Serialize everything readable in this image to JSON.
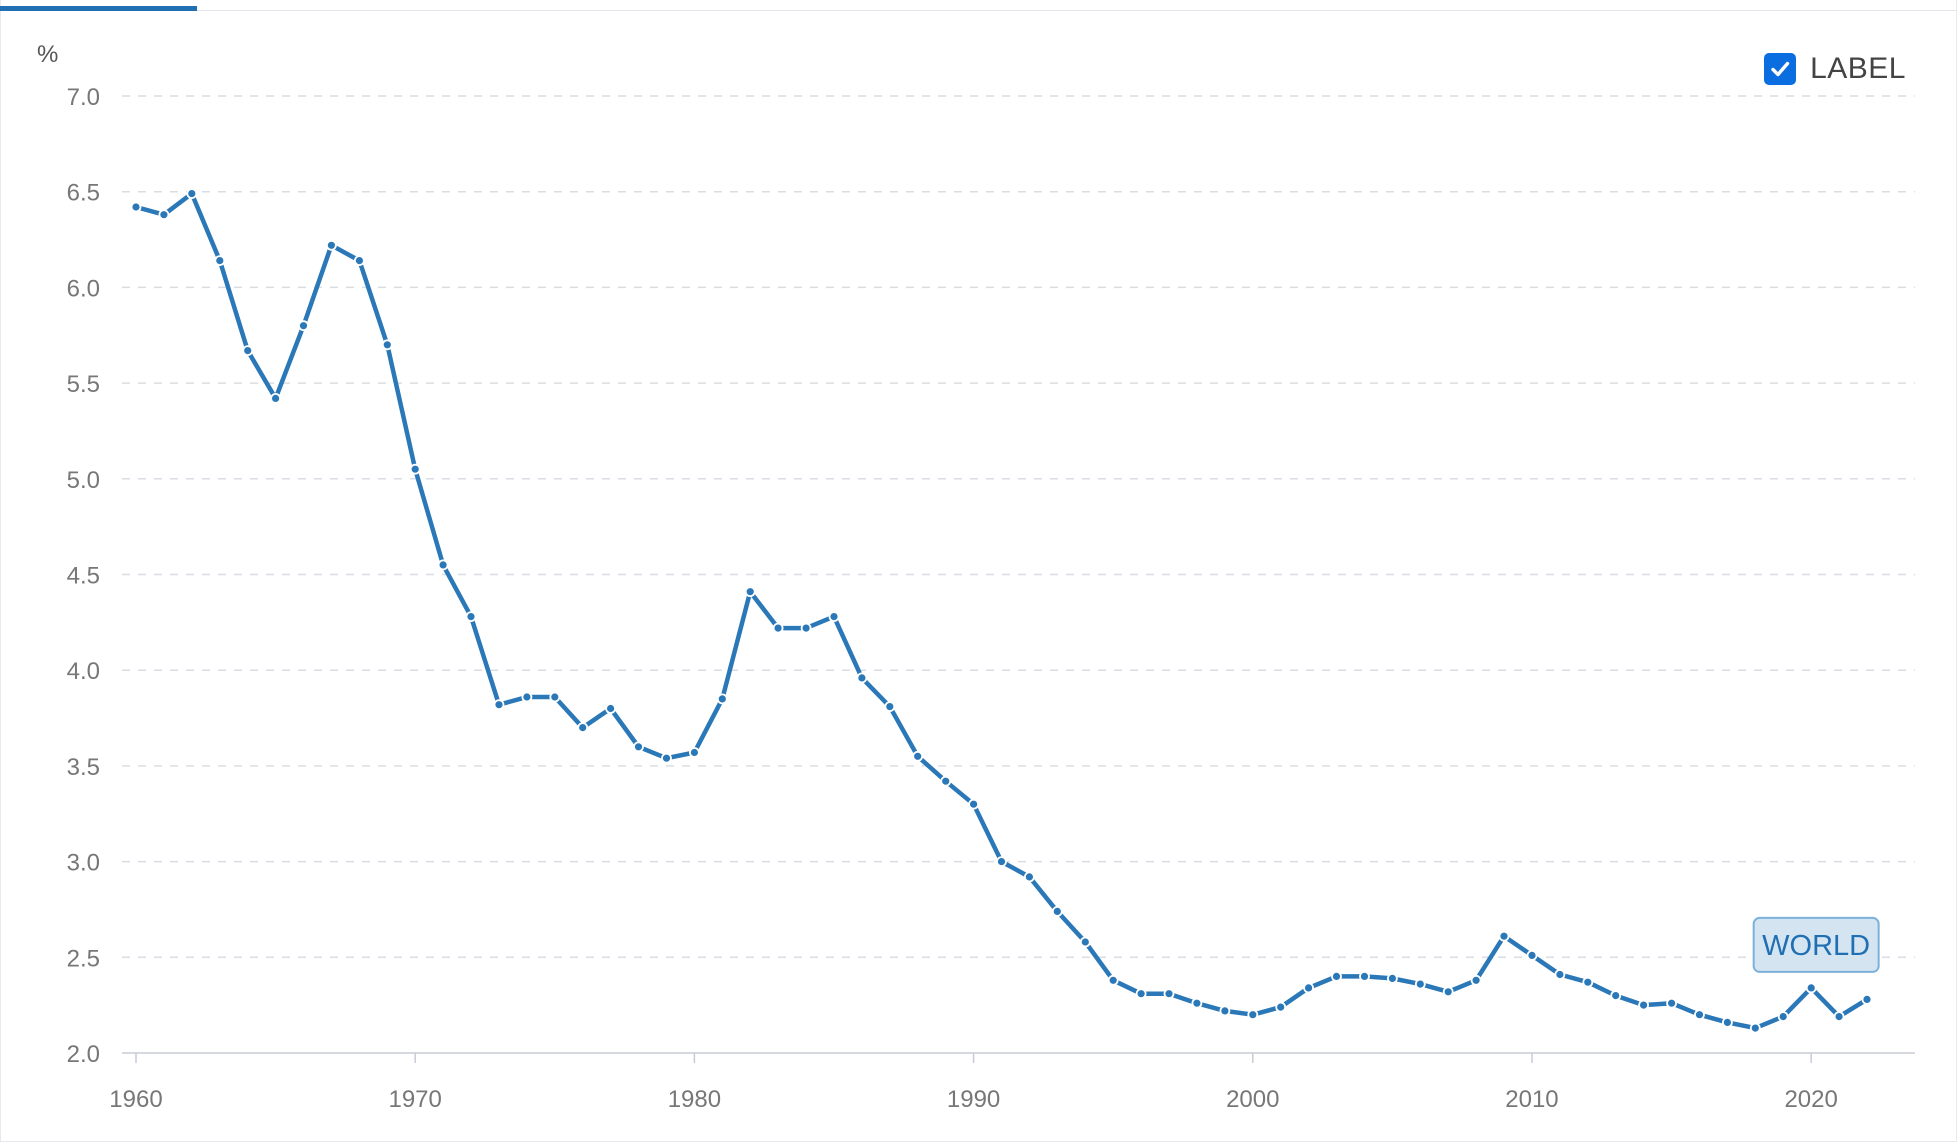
{
  "ui": {
    "legend_label": "LABEL",
    "legend_checked": true,
    "accent_color": "#1f6fb2",
    "checkbox_color": "#0b6ee0",
    "checkbox_icon": "checkmark-icon"
  },
  "chart_data": {
    "type": "line",
    "title": "",
    "xlabel": "",
    "ylabel": "%",
    "xlim": [
      1960,
      2022
    ],
    "ylim": [
      2.0,
      7.0
    ],
    "x_ticks": [
      "1960",
      "1970",
      "1980",
      "1990",
      "2000",
      "2010",
      "2020"
    ],
    "y_ticks": [
      "2.0",
      "2.5",
      "3.0",
      "3.5",
      "4.0",
      "4.5",
      "5.0",
      "5.5",
      "6.0",
      "6.5",
      "7.0"
    ],
    "grid": "horizontal-dashed",
    "legend_position": "top-right",
    "series": [
      {
        "name": "WORLD",
        "color": "#2a78b8",
        "x": [
          1960,
          1961,
          1962,
          1963,
          1964,
          1965,
          1966,
          1967,
          1968,
          1969,
          1970,
          1971,
          1972,
          1973,
          1974,
          1975,
          1976,
          1977,
          1978,
          1979,
          1980,
          1981,
          1982,
          1983,
          1984,
          1985,
          1986,
          1987,
          1988,
          1989,
          1990,
          1991,
          1992,
          1993,
          1994,
          1995,
          1996,
          1997,
          1998,
          1999,
          2000,
          2001,
          2002,
          2003,
          2004,
          2005,
          2006,
          2007,
          2008,
          2009,
          2010,
          2011,
          2012,
          2013,
          2014,
          2015,
          2016,
          2017,
          2018,
          2019,
          2020,
          2021,
          2022
        ],
        "values": [
          6.42,
          6.38,
          6.49,
          6.14,
          5.67,
          5.42,
          5.8,
          6.22,
          6.14,
          5.7,
          5.05,
          4.55,
          4.28,
          3.82,
          3.86,
          3.86,
          3.7,
          3.8,
          3.6,
          3.54,
          3.57,
          3.85,
          4.41,
          4.22,
          4.22,
          4.28,
          3.96,
          3.81,
          3.55,
          3.42,
          3.3,
          3.0,
          2.92,
          2.74,
          2.58,
          2.38,
          2.31,
          2.31,
          2.26,
          2.22,
          2.2,
          2.24,
          2.34,
          2.4,
          2.4,
          2.39,
          2.36,
          2.32,
          2.38,
          2.61,
          2.51,
          2.41,
          2.37,
          2.3,
          2.25,
          2.26,
          2.2,
          2.16,
          2.13,
          2.19,
          2.34,
          2.19,
          2.28
        ]
      }
    ],
    "annotation": {
      "text": "WORLD",
      "x": 2020,
      "y": 2.34
    }
  }
}
